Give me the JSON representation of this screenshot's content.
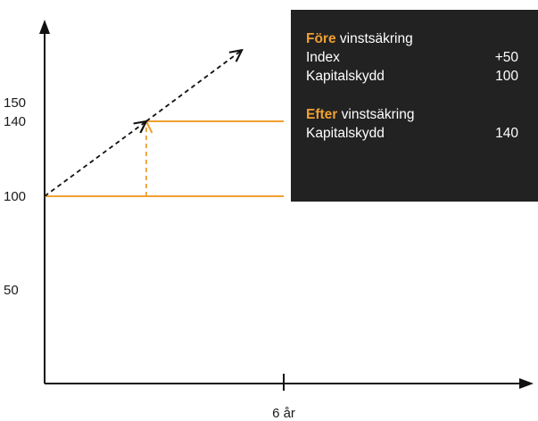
{
  "chart_data": {
    "type": "line",
    "y_ticks": [
      {
        "value": 150,
        "label": "150"
      },
      {
        "value": 140,
        "label": "140"
      },
      {
        "value": 100,
        "label": "100"
      },
      {
        "value": 50,
        "label": "50"
      }
    ],
    "x_ticks": [
      {
        "value": 6,
        "label": "6 år"
      }
    ],
    "ylim": [
      0,
      185
    ],
    "xlim": [
      0,
      9.75
    ],
    "series": [
      {
        "kind": "horizontal-line",
        "style": "solid",
        "color": "#f0a030",
        "y": 100,
        "x": [
          0,
          6
        ]
      },
      {
        "kind": "horizontal-line",
        "style": "solid",
        "color": "#f0a030",
        "y": 140,
        "x": [
          2.55,
          6
        ]
      },
      {
        "kind": "vertical-arrow",
        "style": "dashed",
        "color": "#f0a030",
        "x": 2.55,
        "y": [
          100,
          140
        ]
      },
      {
        "kind": "arrow",
        "style": "dashed",
        "color": "#111111",
        "x": [
          0,
          2.55
        ],
        "y": [
          100,
          140
        ]
      },
      {
        "kind": "arrow",
        "style": "dashed",
        "color": "#111111",
        "x": [
          2.55,
          4.95
        ],
        "y": [
          140,
          178
        ]
      }
    ],
    "colors": {
      "accent": "#f0a030",
      "axis": "#111111",
      "box_bg": "#222222",
      "box_text": "#ffffff"
    }
  },
  "info_box": {
    "before": {
      "accent": "Före",
      "heading": " vinstsäkring",
      "rows": [
        {
          "label": "Index",
          "value": "+50"
        },
        {
          "label": "Kapitalskydd",
          "value": "100"
        }
      ]
    },
    "after": {
      "accent": "Efter",
      "heading": " vinstsäkring",
      "rows": [
        {
          "label": "Kapitalskydd",
          "value": "140"
        }
      ]
    }
  }
}
